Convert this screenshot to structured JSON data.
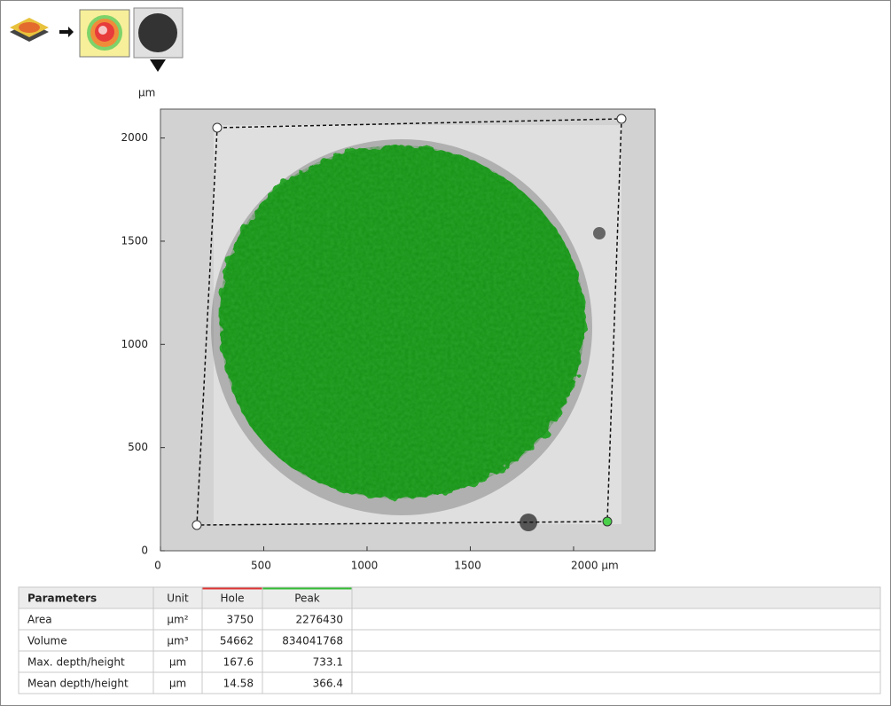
{
  "plot": {
    "y_unit": "µm",
    "xlim": [
      0,
      2395
    ],
    "ylim": [
      0,
      2140
    ],
    "xticks": [
      0,
      500,
      1000,
      1500,
      {
        "value": 2000,
        "label": "2000 µm"
      }
    ],
    "yticks": [
      0,
      500,
      1000,
      1500,
      2000
    ]
  },
  "table": {
    "header": [
      "Parameters",
      "Unit",
      "Hole",
      "Peak"
    ],
    "rows": [
      [
        "Area",
        "µm²",
        "3750",
        "2276430"
      ],
      [
        "Volume",
        "µm³",
        "54662",
        "834041768"
      ],
      [
        "Max. depth/height",
        "µm",
        "167.6",
        "733.1"
      ],
      [
        "Mean depth/height",
        "µm",
        "14.58",
        "366.4"
      ]
    ]
  }
}
